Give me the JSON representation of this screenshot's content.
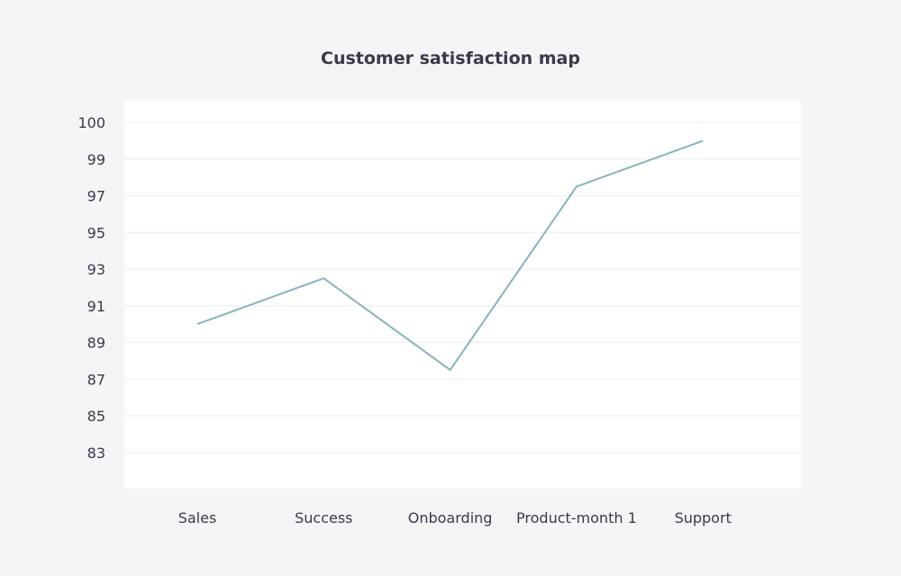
{
  "chart_data": {
    "type": "line",
    "title": "Customer satisfaction map",
    "xlabel": "",
    "ylabel": "",
    "categories": [
      "Sales",
      "Success",
      "Onboarding",
      "Product-month 1",
      "Support"
    ],
    "series": [
      {
        "values": [
          90.0,
          92.5,
          87.5,
          97.5,
          99.5
        ]
      }
    ],
    "y_ticks": [
      "100",
      "99",
      "97",
      "95",
      "93",
      "91",
      "89",
      "87",
      "85",
      "83"
    ],
    "ylim": [
      81,
      101
    ],
    "grid": true,
    "legend": "none",
    "colors": {
      "line": "#86b4bd",
      "grid": "#eef0f3",
      "plot_bg": "#ffffff",
      "page_bg": "#f4f5f7",
      "text": "#3a3a4a"
    }
  }
}
